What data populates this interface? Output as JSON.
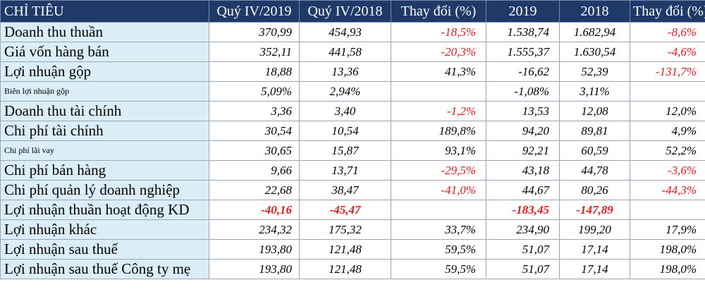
{
  "header": {
    "label": "CHỈ TIÊU",
    "q2019": "Quý IV/2019",
    "q2018": "Quý IV/2018",
    "q_change": "Thay đổi (%)",
    "y2019": "2019",
    "y2018": "2018",
    "y_change": "Thay đổi (%)"
  },
  "rows": [
    {
      "label": "Doanh thu thuần",
      "q2019": "370,99",
      "q2018": "454,93",
      "q_change": "-18,5%",
      "y2019": "1.538,74",
      "y2018": "1.682,94",
      "y_change": "-8,6%"
    },
    {
      "label": "Giá vốn hàng bán",
      "q2019": "352,11",
      "q2018": "441,58",
      "q_change": "-20,3%",
      "y2019": "1.555,37",
      "y2018": "1.630,54",
      "y_change": "-4,6%"
    },
    {
      "label": "Lợi nhuận gộp",
      "q2019": "18,88",
      "q2018": "13,36",
      "q_change": "41,3%",
      "y2019": "-16,62",
      "y2018": "52,39",
      "y_change": "-131,7%"
    },
    {
      "label": "Biên lợi nhuận gộp",
      "q2019": "5,09%",
      "q2018": "2,94%",
      "q_change": "",
      "y2019": "-1,08%",
      "y2018": "3,11%",
      "y_change": ""
    },
    {
      "label": "Doanh thu tài chính",
      "q2019": "3,36",
      "q2018": "3,40",
      "q_change": "-1,2%",
      "y2019": "13,53",
      "y2018": "12,08",
      "y_change": "12,0%"
    },
    {
      "label": "Chi phí tài chính",
      "q2019": "30,54",
      "q2018": "10,54",
      "q_change": "189,8%",
      "y2019": "94,20",
      "y2018": "89,81",
      "y_change": "4,9%"
    },
    {
      "label": "Chi phí lãi vay",
      "q2019": "30,65",
      "q2018": "15,87",
      "q_change": "93,1%",
      "y2019": "92,21",
      "y2018": "60,59",
      "y_change": "52,2%"
    },
    {
      "label": "Chi phí bán hàng",
      "q2019": "9,66",
      "q2018": "13,71",
      "q_change": "-29,5%",
      "y2019": "43,18",
      "y2018": "44,78",
      "y_change": "-3,6%"
    },
    {
      "label": "Chi phí quản lý doanh nghiệp",
      "q2019": "22,68",
      "q2018": "38,47",
      "q_change": "-41,0%",
      "y2019": "44,67",
      "y2018": "80,26",
      "y_change": "-44,3%"
    },
    {
      "label": "Lợi nhuận thuần hoạt động KD",
      "q2019": "-40,16",
      "q2018": "-45,47",
      "q_change": "",
      "y2019": "-183,45",
      "y2018": "-147,89",
      "y_change": ""
    },
    {
      "label": "Lợi nhuận khác",
      "q2019": "234,32",
      "q2018": "175,32",
      "q_change": "33,7%",
      "y2019": "234,90",
      "y2018": "199,20",
      "y_change": "17,9%"
    },
    {
      "label": "Lợi nhuận sau thuế",
      "q2019": "193,80",
      "q2018": "121,48",
      "q_change": "59,5%",
      "y2019": "51,07",
      "y2018": "17,14",
      "y_change": "198,0%"
    },
    {
      "label": "Lợi nhuận sau thuế Công ty mẹ",
      "q2019": "193,80",
      "q2018": "121,48",
      "q_change": "59,5%",
      "y2019": "51,07",
      "y2018": "17,14",
      "y_change": "198,0%"
    }
  ],
  "colors": {
    "header_bg": "#1f3a68",
    "label_bg": "#dbeef8",
    "negative": "#e8191b"
  }
}
